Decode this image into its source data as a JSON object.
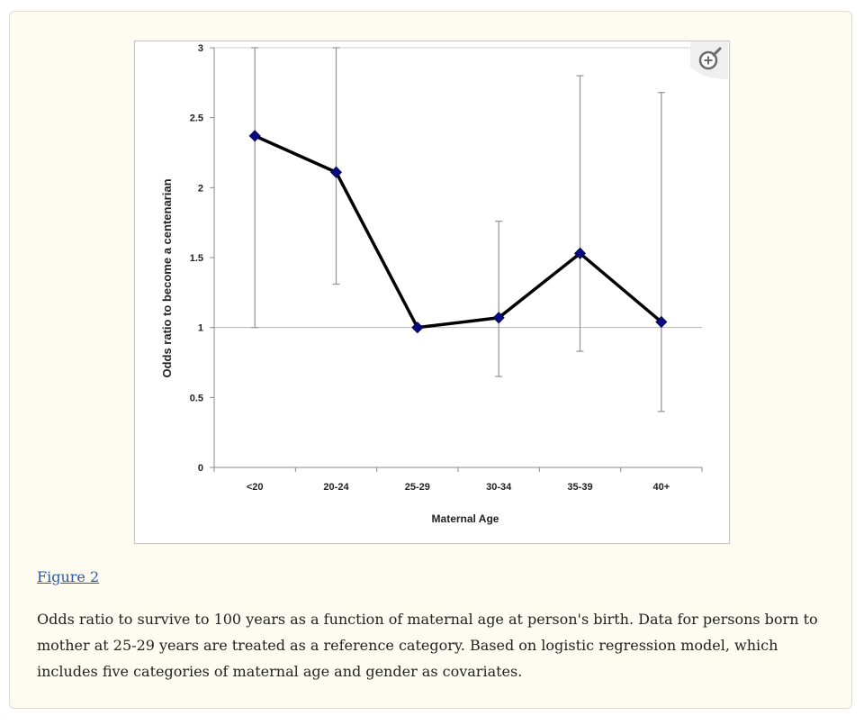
{
  "figure": {
    "link_label": "Figure 2",
    "caption": "Odds ratio to survive to 100 years as a function of maternal age at person's birth. Data for persons born to mother at 25-29 years are treated as a reference category. Based on logistic regression model, which includes five categories of maternal age and gender as covariates."
  },
  "zoom_button": {
    "icon": "zoom-in-magnifier-icon"
  },
  "chart_data": {
    "type": "line",
    "title": "",
    "xlabel": "Maternal Age",
    "ylabel": "Odds ratio to become a centenarian",
    "categories": [
      "<20",
      "20-24",
      "25-29",
      "30-34",
      "35-39",
      "40+"
    ],
    "values": [
      2.37,
      2.11,
      1.0,
      1.07,
      1.53,
      1.04
    ],
    "error_bars": {
      "lower": [
        1.0,
        1.31,
        1.0,
        0.65,
        0.83,
        0.4
      ],
      "upper": [
        3.0,
        3.0,
        1.0,
        1.76,
        2.8,
        2.68
      ]
    },
    "ylim": [
      0,
      3
    ],
    "yticks": [
      "0",
      "0.5",
      "1",
      "1.5",
      "2",
      "2.5",
      "3"
    ],
    "reference_line": 1,
    "grid": false,
    "legend": "none",
    "colors": {
      "line": "#000000",
      "marker": "#0a0a80",
      "error_bar": "#9a9a9a",
      "reference_line": "#b5b5b5"
    }
  }
}
